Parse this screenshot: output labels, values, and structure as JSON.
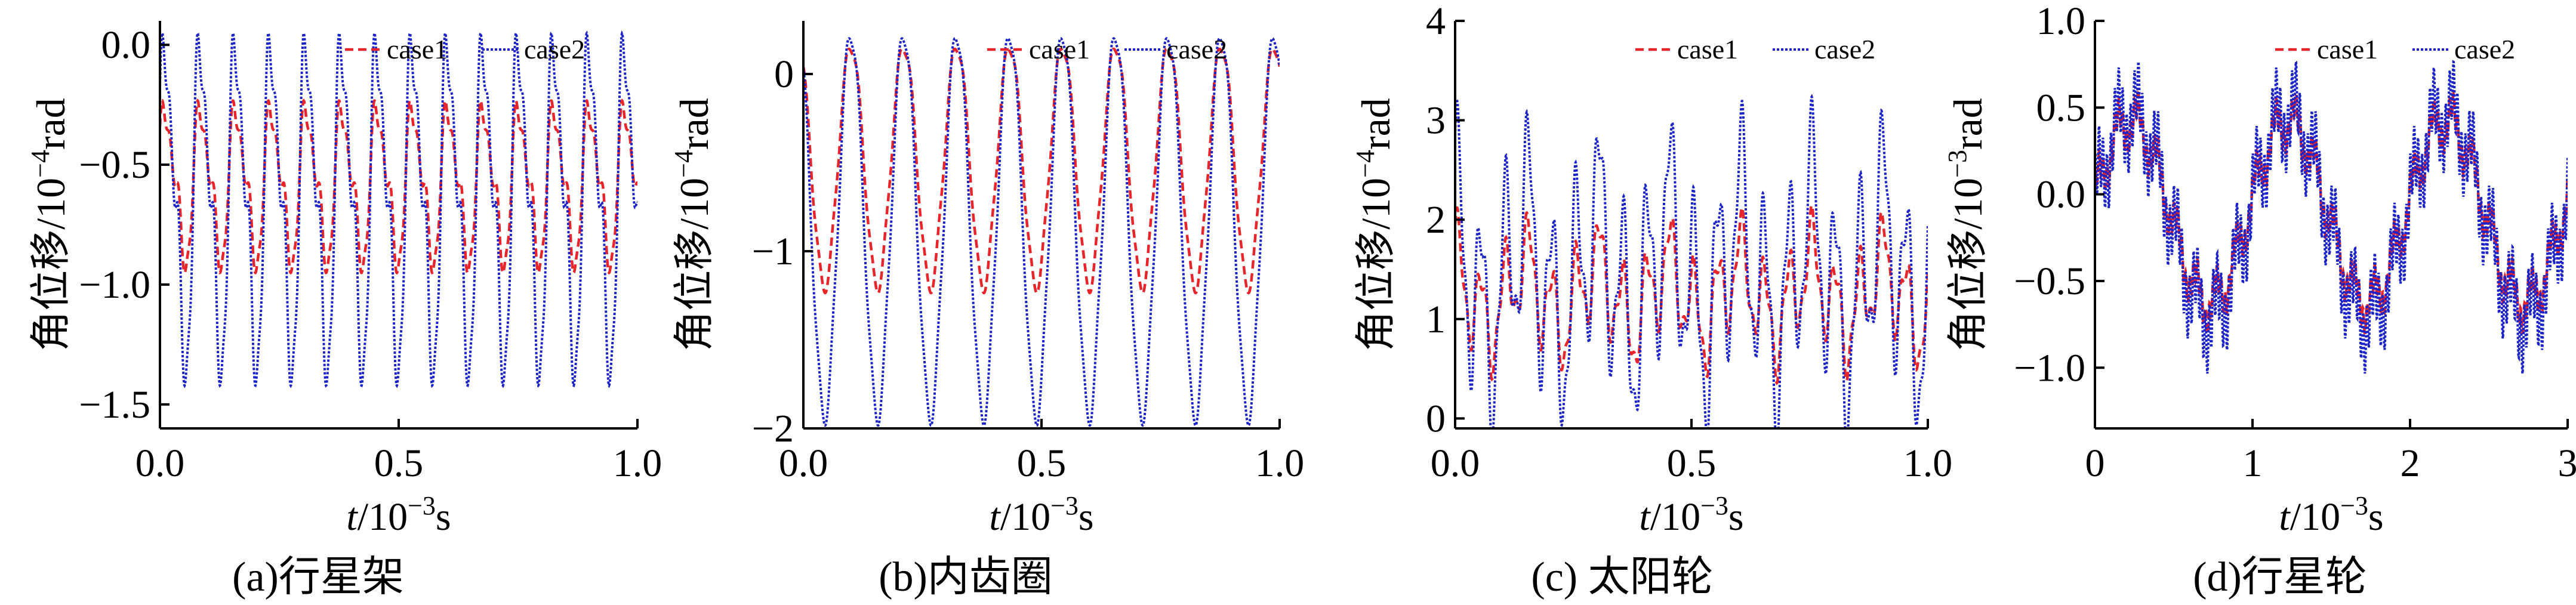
{
  "figure": {
    "background": "#ffffff"
  },
  "colors": {
    "case1": "#e8252b",
    "case2": "#1a22c8",
    "axis": "#000000"
  },
  "chart_data": [
    {
      "type": "line",
      "caption": "(a)行星架",
      "xlabel": {
        "italic": "t",
        "rest": "/10",
        "sup": "−3",
        "unit": "s"
      },
      "ylabel": {
        "prefix": "角位移/10",
        "sup": "−4",
        "unit": "rad"
      },
      "xlim": [
        0,
        1.0
      ],
      "ylim": [
        -1.6,
        0.1
      ],
      "xticks": [
        0,
        0.5,
        1.0
      ],
      "xtick_labels": [
        "0.0",
        "0.5",
        "1.0"
      ],
      "yticks": [
        0,
        -0.5,
        -1.0,
        -1.5
      ],
      "ytick_labels": [
        "0.0",
        "−0.5",
        "−1.0",
        "−1.5"
      ],
      "legend": [
        "case1",
        "case2"
      ],
      "legend_position": "top-right",
      "series": [
        {
          "name": "case1",
          "signal": {
            "offset": -0.58,
            "amp1": 0.3,
            "f1": 13.5,
            "ph1": 0.4,
            "amp2": 0.1,
            "f2": 27,
            "ph2": 1.1,
            "amp3": 0.05,
            "f3": 54,
            "ph3": 0.7
          }
        },
        {
          "name": "case2",
          "signal": {
            "offset": -0.66,
            "amp1": 0.62,
            "f1": 13.5,
            "ph1": 0.4,
            "amp2": 0.2,
            "f2": 27,
            "ph2": 1.1,
            "amp3": 0.1,
            "f3": 54,
            "ph3": 0.7
          }
        }
      ]
    },
    {
      "type": "line",
      "caption": "(b)内齿圈",
      "xlabel": {
        "italic": "t",
        "rest": "/10",
        "sup": "−3",
        "unit": "s"
      },
      "ylabel": {
        "prefix": "角位移/10",
        "sup": "−4",
        "unit": "rad"
      },
      "xlim": [
        0,
        1.0
      ],
      "ylim": [
        -2.0,
        0.3
      ],
      "xticks": [
        0,
        0.5,
        1.0
      ],
      "xtick_labels": [
        "0.0",
        "0.5",
        "1.0"
      ],
      "yticks": [
        0,
        -1,
        -2
      ],
      "ytick_labels": [
        "0",
        "−1",
        "−2"
      ],
      "legend": [
        "case1",
        "case2"
      ],
      "legend_position": "top-right",
      "series": [
        {
          "name": "case1",
          "signal": {
            "offset": -0.52,
            "amp1": 0.68,
            "f1": 9,
            "ph1": 2.2,
            "amp2": 0.04,
            "f2": 36,
            "ph2": 0.3,
            "amp3": 0.0,
            "f3": 1,
            "ph3": 0
          }
        },
        {
          "name": "case2",
          "signal": {
            "offset": -0.85,
            "amp1": 1.08,
            "f1": 9,
            "ph1": 2.2,
            "amp2": 0.06,
            "f2": 36,
            "ph2": 0.3,
            "amp3": 0.0,
            "f3": 1,
            "ph3": 0
          }
        }
      ]
    },
    {
      "type": "line",
      "caption": "(c) 太阳轮",
      "xlabel": {
        "italic": "t",
        "rest": "/10",
        "sup": "−3",
        "unit": "s"
      },
      "ylabel": {
        "prefix": "角位移/10",
        "sup": "−4",
        "unit": "rad"
      },
      "xlim": [
        0,
        1.0
      ],
      "ylim": [
        -0.1,
        4.0
      ],
      "xticks": [
        0,
        0.5,
        1.0
      ],
      "xtick_labels": [
        "0.0",
        "0.5",
        "1.0"
      ],
      "yticks": [
        0,
        1,
        2,
        3,
        4
      ],
      "ytick_labels": [
        "0",
        "1",
        "2",
        "3",
        "4"
      ],
      "legend": [
        "case1",
        "case2"
      ],
      "legend_position": "top-right",
      "series": [
        {
          "name": "case1",
          "signal": {
            "offset": 1.25,
            "amp1": 0.45,
            "f1": 20,
            "ph1": 0.9,
            "amp2": 0.3,
            "f2": 6.6,
            "ph2": 1.8,
            "amp3": 0.15,
            "f3": 48,
            "ph3": 0.4
          }
        },
        {
          "name": "case2",
          "signal": {
            "offset": 1.45,
            "amp1": 0.95,
            "f1": 20,
            "ph1": 0.9,
            "amp2": 0.55,
            "f2": 6.6,
            "ph2": 1.8,
            "amp3": 0.3,
            "f3": 48,
            "ph3": 0.4
          }
        }
      ]
    },
    {
      "type": "line",
      "caption": "(d)行星轮",
      "xlabel": {
        "italic": "t",
        "rest": "/10",
        "sup": "−3",
        "unit": "s"
      },
      "ylabel": {
        "prefix": "角位移/10",
        "sup": "−3",
        "unit": "rad"
      },
      "xlim": [
        0,
        3.0
      ],
      "ylim": [
        -1.35,
        1.0
      ],
      "xticks": [
        0,
        1,
        2,
        3
      ],
      "xtick_labels": [
        "0",
        "1",
        "2",
        "3"
      ],
      "yticks": [
        1.0,
        0.5,
        0.0,
        -0.5,
        -1.0
      ],
      "ytick_labels": [
        "1.0",
        "0.5",
        "0.0",
        "−0.5",
        "−1.0"
      ],
      "legend": [
        "case1",
        "case2"
      ],
      "legend_position": "top-right",
      "series": [
        {
          "name": "case1",
          "signal": {
            "offset": -0.1,
            "amp1": 0.52,
            "f1": 1.0,
            "ph1": 0.15,
            "amp2": 0.12,
            "f2": 8,
            "ph2": 0.5,
            "amp3": 0.07,
            "f3": 40,
            "ph3": 1.3
          }
        },
        {
          "name": "case2",
          "signal": {
            "offset": -0.12,
            "amp1": 0.58,
            "f1": 1.0,
            "ph1": 0.15,
            "amp2": 0.17,
            "f2": 8,
            "ph2": 0.5,
            "amp3": 0.17,
            "f3": 40,
            "ph3": 1.3
          }
        }
      ]
    }
  ]
}
